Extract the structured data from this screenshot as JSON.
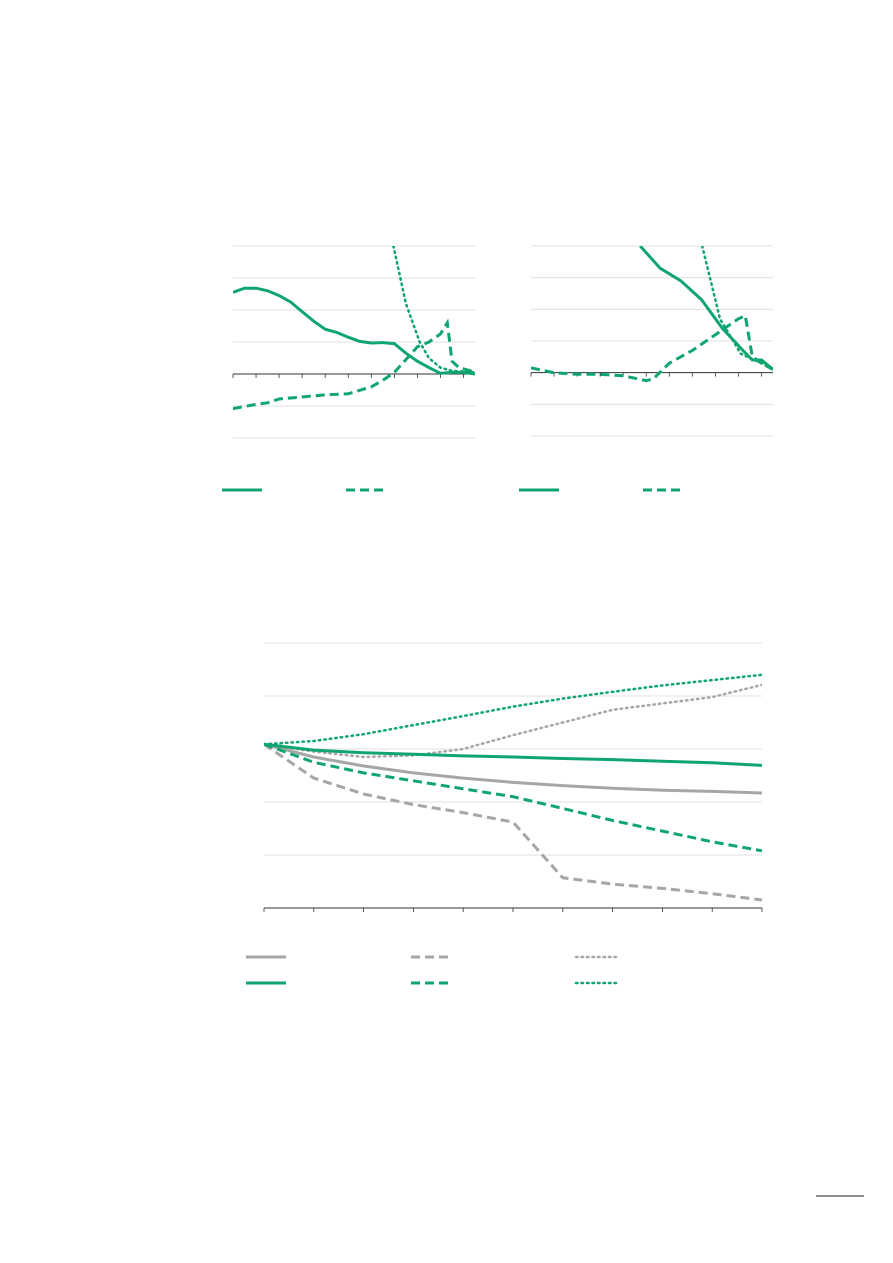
{
  "chart_data": [
    {
      "type": "line",
      "xlim": [
        0,
        10.5
      ],
      "ylim": [
        -2,
        4
      ],
      "xticks": [
        0,
        1,
        2,
        3,
        4,
        5,
        6,
        7,
        8,
        9,
        10
      ],
      "yticks": [
        -2,
        -1,
        0,
        1,
        2,
        3,
        4
      ],
      "grid": true,
      "legend": true,
      "series": [
        {
          "color": "#0fa56f",
          "dash": "solid",
          "x": [
            0,
            0.5,
            1,
            1.5,
            2,
            2.5,
            3,
            3.5,
            4,
            4.5,
            5,
            5.5,
            6,
            6.5,
            7,
            7.5,
            8,
            8.5,
            9,
            9.5,
            10,
            10.5
          ],
          "values": [
            2.55,
            2.68,
            2.68,
            2.6,
            2.45,
            2.25,
            1.95,
            1.65,
            1.4,
            1.3,
            1.15,
            1.02,
            0.97,
            0.98,
            0.95,
            0.65,
            0.4,
            0.2,
            0.02,
            0.05,
            0.05,
            0
          ]
        },
        {
          "color": "#0fa56f",
          "dash": "dashed",
          "x": [
            0,
            1,
            1.5,
            2,
            3,
            4,
            5,
            6,
            6.5,
            7,
            7.5,
            8,
            8.5,
            9,
            9.3,
            9.5,
            9.8,
            10.3,
            10.5
          ],
          "values": [
            -1.08,
            -0.95,
            -0.9,
            -0.78,
            -0.72,
            -0.65,
            -0.62,
            -0.4,
            -0.2,
            0.05,
            0.45,
            0.85,
            1.0,
            1.25,
            1.6,
            0.4,
            0.2,
            0.1,
            0
          ]
        },
        {
          "color": "#0fa56f",
          "dash": "dotted",
          "legend": false,
          "x": [
            6.96,
            7.5,
            8.1,
            8.5,
            9,
            9.5,
            10.5
          ],
          "values": [
            4,
            2.2,
            1.0,
            0.5,
            0.2,
            0.1,
            0.05
          ]
        }
      ]
    },
    {
      "type": "line",
      "xlim": [
        0,
        10.5
      ],
      "ylim": [
        -2,
        4
      ],
      "xticks": [
        0,
        1,
        2,
        3,
        4,
        5,
        6,
        7,
        8,
        9,
        10
      ],
      "yticks": [
        -2,
        -1,
        0,
        1,
        2,
        3,
        4
      ],
      "grid": true,
      "legend": true,
      "series": [
        {
          "color": "#0fa56f",
          "dash": "solid",
          "x": [
            4.74,
            5.6,
            6.5,
            7.4,
            8.3,
            9.2,
            9.6,
            10,
            10.5
          ],
          "values": [
            4,
            3.3,
            2.9,
            2.3,
            1.4,
            0.7,
            0.4,
            0.4,
            0.1
          ]
        },
        {
          "color": "#0fa56f",
          "dash": "dashed",
          "x": [
            0,
            1,
            2,
            3,
            4,
            5,
            5.3,
            6,
            7,
            8,
            9,
            9.3,
            9.6,
            10,
            10.5
          ],
          "values": [
            0.15,
            0,
            -0.05,
            -0.05,
            -0.1,
            -0.25,
            -0.2,
            0.3,
            0.7,
            1.2,
            1.7,
            1.8,
            0.5,
            0.3,
            0.1
          ]
        },
        {
          "color": "#0fa56f",
          "dash": "dotted",
          "legend": false,
          "x": [
            7.43,
            8.2,
            9.1,
            10,
            10.5
          ],
          "values": [
            4,
            1.7,
            0.6,
            0.3,
            0.1
          ]
        }
      ]
    },
    {
      "type": "line",
      "xlim": [
        0,
        10
      ],
      "ylim": [
        0,
        5
      ],
      "xticks": [
        0,
        1,
        2,
        3,
        4,
        5,
        6,
        7,
        8,
        9,
        10
      ],
      "yticks": [
        0,
        1,
        2,
        3,
        4,
        5
      ],
      "grid": true,
      "legend": true,
      "series": [
        {
          "color": "#a6a6a6",
          "dash": "solid",
          "x": [
            0,
            1,
            2,
            3,
            4,
            5,
            6,
            7,
            8,
            9,
            10
          ],
          "values": [
            3.09,
            2.85,
            2.68,
            2.55,
            2.45,
            2.37,
            2.31,
            2.26,
            2.22,
            2.2,
            2.17
          ]
        },
        {
          "color": "#a6a6a6",
          "dash": "dashed",
          "x": [
            0,
            1,
            2,
            3,
            4,
            5,
            6,
            7,
            8,
            9,
            10
          ],
          "values": [
            3.09,
            2.45,
            2.15,
            1.95,
            1.8,
            1.62,
            0.57,
            0.45,
            0.37,
            0.27,
            0.15
          ]
        },
        {
          "color": "#a6a6a6",
          "dash": "dotted",
          "x": [
            0,
            1,
            2,
            3,
            4,
            5,
            6,
            7,
            8,
            9,
            10
          ],
          "values": [
            3.09,
            2.95,
            2.85,
            2.88,
            3.0,
            3.26,
            3.5,
            3.74,
            3.86,
            3.98,
            4.21
          ]
        },
        {
          "color": "#0fa56f",
          "dash": "solid",
          "x": [
            0,
            1,
            2,
            3,
            4,
            5,
            6,
            7,
            8,
            9,
            10
          ],
          "values": [
            3.09,
            2.98,
            2.93,
            2.9,
            2.87,
            2.85,
            2.82,
            2.8,
            2.77,
            2.74,
            2.69
          ]
        },
        {
          "color": "#0fa56f",
          "dash": "dashed",
          "x": [
            0,
            1,
            2,
            3,
            4,
            5,
            6,
            7,
            8,
            9,
            10
          ],
          "values": [
            3.09,
            2.75,
            2.55,
            2.4,
            2.25,
            2.1,
            1.88,
            1.65,
            1.45,
            1.25,
            1.08
          ]
        },
        {
          "color": "#0fa56f",
          "dash": "dotted",
          "x": [
            0,
            1,
            2,
            3,
            4,
            5,
            6,
            7,
            8,
            9,
            10
          ],
          "values": [
            3.09,
            3.15,
            3.28,
            3.45,
            3.62,
            3.8,
            3.95,
            4.08,
            4.2,
            4.3,
            4.4
          ]
        }
      ]
    }
  ]
}
